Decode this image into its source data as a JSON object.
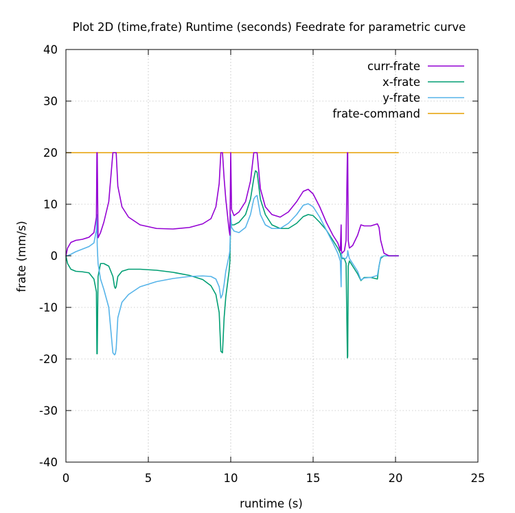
{
  "chart_data": {
    "type": "line",
    "title": "Plot 2D (time,frate) Runtime (seconds) Feedrate for parametric curve",
    "xlabel": "runtime (s)",
    "ylabel": "frate (mm/s)",
    "xlim": [
      0,
      25
    ],
    "ylim": [
      -40,
      40
    ],
    "xticks": [
      0,
      5,
      10,
      15,
      20,
      25
    ],
    "yticks": [
      -40,
      -30,
      -20,
      -10,
      0,
      10,
      20,
      30,
      40
    ],
    "grid": true,
    "legend_position": "top-right",
    "series": [
      {
        "name": "curr-frate",
        "color": "#9400d3",
        "x": [
          0,
          0.1,
          0.3,
          0.6,
          1.0,
          1.4,
          1.7,
          1.85,
          1.88,
          1.9,
          1.95,
          2.1,
          2.3,
          2.6,
          2.85,
          2.95,
          3.0,
          3.05,
          3.15,
          3.4,
          3.8,
          4.5,
          5.5,
          6.5,
          7.5,
          8.3,
          8.8,
          9.1,
          9.3,
          9.4,
          9.5,
          9.6,
          9.7,
          9.9,
          9.95,
          10.0,
          10.05,
          10.2,
          10.5,
          10.9,
          11.2,
          11.4,
          11.5,
          11.6,
          11.8,
          12.1,
          12.5,
          13.0,
          13.5,
          14.0,
          14.4,
          14.7,
          15.0,
          15.4,
          15.8,
          16.2,
          16.5,
          16.65,
          16.7,
          16.72,
          16.75,
          16.9,
          17.0,
          17.08,
          17.1,
          17.13,
          17.2,
          17.4,
          17.7,
          17.9,
          18.1,
          18.5,
          18.9,
          19.0,
          19.1,
          19.3,
          19.6,
          20.2
        ],
        "y": [
          0,
          1.5,
          2.6,
          3.0,
          3.2,
          3.6,
          4.5,
          7.5,
          20,
          20,
          3.5,
          4.5,
          6.5,
          10.5,
          20,
          20,
          20,
          20,
          13.5,
          9.5,
          7.5,
          6.0,
          5.3,
          5.2,
          5.5,
          6.2,
          7.2,
          9.5,
          14.0,
          20,
          20,
          15.0,
          11.0,
          5.0,
          4.0,
          20,
          9.0,
          7.8,
          8.5,
          10.5,
          14.5,
          20,
          20,
          20,
          13.0,
          9.5,
          8.0,
          7.5,
          8.5,
          10.5,
          12.5,
          12.9,
          12.0,
          9.5,
          6.5,
          4.0,
          2.5,
          1.0,
          6.0,
          1.0,
          0.5,
          1.0,
          3.0,
          20,
          20,
          3.0,
          1.5,
          2.0,
          4.0,
          6.0,
          5.8,
          5.8,
          6.2,
          5.5,
          3.0,
          0.5,
          0,
          0
        ]
      },
      {
        "name": "x-frate",
        "color": "#009e73",
        "x": [
          0,
          0.1,
          0.3,
          0.6,
          1.0,
          1.4,
          1.7,
          1.85,
          1.88,
          1.9,
          1.95,
          2.1,
          2.3,
          2.6,
          2.85,
          2.95,
          3.0,
          3.05,
          3.15,
          3.4,
          3.8,
          4.5,
          5.5,
          6.5,
          7.5,
          8.3,
          8.8,
          9.1,
          9.3,
          9.4,
          9.5,
          9.6,
          9.7,
          9.9,
          9.95,
          10.0,
          10.05,
          10.2,
          10.5,
          10.9,
          11.2,
          11.4,
          11.5,
          11.6,
          11.8,
          12.1,
          12.5,
          13.0,
          13.5,
          14.0,
          14.4,
          14.7,
          15.0,
          15.4,
          15.8,
          16.2,
          16.5,
          16.65,
          16.7,
          16.72,
          16.75,
          16.9,
          17.0,
          17.08,
          17.1,
          17.13,
          17.2,
          17.4,
          17.7,
          17.9,
          18.1,
          18.5,
          18.9,
          19.0,
          19.1,
          19.3,
          19.6,
          20.2
        ],
        "y": [
          0,
          -1.5,
          -2.6,
          -3.0,
          -3.1,
          -3.3,
          -4.5,
          -7.0,
          -19,
          -19,
          -4.0,
          -1.5,
          -1.5,
          -2.0,
          -4.0,
          -6.0,
          -6.3,
          -6.0,
          -4.0,
          -3.0,
          -2.6,
          -2.6,
          -2.8,
          -3.2,
          -3.8,
          -4.6,
          -5.8,
          -7.5,
          -11.0,
          -18.5,
          -18.8,
          -12.0,
          -8.0,
          -3.0,
          -1.0,
          7.5,
          6.0,
          6.0,
          6.5,
          8.0,
          11.0,
          15.0,
          16.5,
          16.2,
          11.0,
          8.0,
          6.0,
          5.3,
          5.3,
          6.3,
          7.6,
          8.0,
          7.8,
          6.5,
          5.0,
          3.0,
          1.5,
          0.5,
          -0.5,
          -0.5,
          -0.5,
          -0.6,
          -1.5,
          -19.8,
          -19.5,
          -2.0,
          -1.0,
          -2.0,
          -3.5,
          -4.8,
          -4.2,
          -4.2,
          -4.5,
          -2.0,
          -0.5,
          0,
          0,
          0
        ]
      },
      {
        "name": "y-frate",
        "color": "#56b4e9",
        "x": [
          0,
          0.1,
          0.3,
          0.6,
          1.0,
          1.4,
          1.7,
          1.85,
          1.88,
          1.9,
          1.95,
          2.1,
          2.3,
          2.6,
          2.85,
          2.95,
          3.0,
          3.05,
          3.15,
          3.4,
          3.8,
          4.5,
          5.5,
          6.5,
          7.5,
          8.3,
          8.8,
          9.1,
          9.3,
          9.4,
          9.5,
          9.6,
          9.7,
          9.9,
          9.95,
          10.0,
          10.05,
          10.2,
          10.5,
          10.9,
          11.2,
          11.4,
          11.5,
          11.6,
          11.8,
          12.1,
          12.5,
          13.0,
          13.5,
          14.0,
          14.4,
          14.7,
          15.0,
          15.4,
          15.8,
          16.2,
          16.5,
          16.65,
          16.7,
          16.72,
          16.75,
          16.9,
          17.0,
          17.08,
          17.1,
          17.13,
          17.2,
          17.4,
          17.7,
          17.9,
          18.1,
          18.5,
          18.9,
          19.0,
          19.1,
          19.3,
          19.6,
          20.2
        ],
        "y": [
          0,
          0,
          0.3,
          0.8,
          1.3,
          1.8,
          2.5,
          5.0,
          8.0,
          2.0,
          -1.5,
          -4.5,
          -6.5,
          -10.0,
          -18.8,
          -19.2,
          -19.0,
          -18.0,
          -12.0,
          -9.0,
          -7.5,
          -6.0,
          -5.0,
          -4.4,
          -4.0,
          -3.9,
          -4.0,
          -4.5,
          -6.0,
          -8.2,
          -7.5,
          -5.5,
          -3.0,
          0,
          1.0,
          8.0,
          5.5,
          4.8,
          4.5,
          5.5,
          8.0,
          11.0,
          11.5,
          11.7,
          8.0,
          6.0,
          5.3,
          5.3,
          6.3,
          8.0,
          9.8,
          10.1,
          9.5,
          7.5,
          5.0,
          2.5,
          0.5,
          -1.0,
          -6.0,
          0.5,
          -0.3,
          -0.5,
          -0.5,
          0,
          1.0,
          0.5,
          -0.5,
          -1.5,
          -3.0,
          -4.7,
          -4.3,
          -4.2,
          -3.8,
          -2.0,
          -0.3,
          0,
          0,
          0
        ]
      },
      {
        "name": "frate-command",
        "color": "#e69f00",
        "x": [
          0,
          20.2
        ],
        "y": [
          20,
          20
        ]
      }
    ]
  }
}
